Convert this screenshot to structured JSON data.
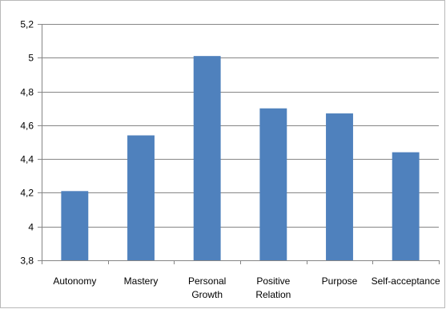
{
  "chart_data": {
    "type": "bar",
    "title": "",
    "xlabel": "",
    "ylabel": "",
    "categories": [
      "Autonomy",
      "Mastery",
      "Personal Growth",
      "Positive Relation",
      "Purpose",
      "Self-acceptance"
    ],
    "category_lines": [
      [
        "Autonomy"
      ],
      [
        "Mastery"
      ],
      [
        "Personal",
        "Growth"
      ],
      [
        "Positive",
        "Relation"
      ],
      [
        "Purpose"
      ],
      [
        "Self-acceptance"
      ]
    ],
    "values": [
      4.21,
      4.54,
      5.01,
      4.7,
      4.67,
      4.44
    ],
    "ylim": [
      3.8,
      5.2
    ],
    "yticks": [
      3.8,
      4.0,
      4.2,
      4.4,
      4.6,
      4.8,
      5.0,
      5.2
    ],
    "ytick_labels": [
      "3,8",
      "4",
      "4,2",
      "4,4",
      "4,6",
      "4,8",
      "5",
      "5,2"
    ],
    "grid": true,
    "legend": "none",
    "bar_color": "#4f81bd",
    "grid_color": "#868686"
  }
}
